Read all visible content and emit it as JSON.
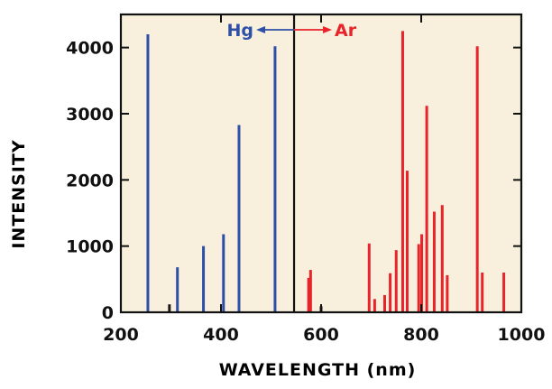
{
  "chart_data": {
    "type": "bar",
    "title": "",
    "xlabel": "WAVELENGTH (nm)",
    "ylabel": "INTENSITY",
    "xlim": [
      200,
      1000
    ],
    "ylim": [
      0,
      4500
    ],
    "xticks": [
      200,
      400,
      600,
      800,
      1000
    ],
    "yticks": [
      0,
      1000,
      2000,
      3000,
      4000
    ],
    "divider_x": 546,
    "background_color": "#f8f0dc",
    "region_labels": [
      {
        "text": "Hg",
        "color": "#2e4fa8",
        "arrow": "left"
      },
      {
        "text": "Ar",
        "color": "#e8232a",
        "arrow": "right"
      }
    ],
    "series": [
      {
        "name": "Hg",
        "color": "#2e4fa8",
        "x": [
          254,
          313,
          365,
          405,
          436,
          508
        ],
        "values": [
          4200,
          680,
          1000,
          1180,
          2830,
          4020
        ]
      },
      {
        "name": "Ar",
        "color": "#e8232a",
        "x": [
          575,
          579,
          696,
          707,
          727,
          738,
          750,
          763,
          772,
          795,
          801,
          811,
          826,
          842,
          852,
          912,
          922,
          965
        ],
        "values": [
          520,
          640,
          1040,
          200,
          260,
          590,
          940,
          4250,
          2140,
          1030,
          1180,
          3120,
          1520,
          1620,
          560,
          4020,
          600,
          600
        ]
      },
      {
        "name": "black",
        "color": "#1a1a1a",
        "x": [
          297,
          600
        ],
        "values": [
          120,
          90
        ]
      }
    ]
  }
}
